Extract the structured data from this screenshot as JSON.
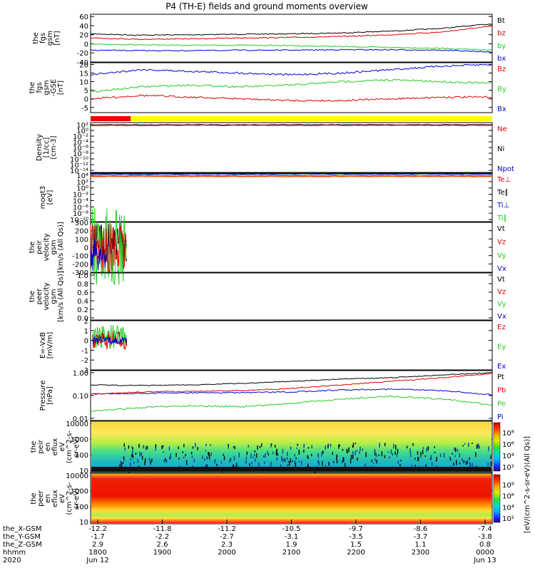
{
  "title": "P4 (TH-E) fields and ground moments overview",
  "colors": {
    "black": "#000000",
    "red": "#dd0000",
    "green": "#22cc22",
    "blue": "#0000cc",
    "yellow": "#ffff00",
    "barred": "#ee0000"
  },
  "chart_data": [
    {
      "type": "line",
      "ylabel": [
        "the",
        "fgs",
        "gsm",
        "[nT]"
      ],
      "yticks": [
        60,
        40,
        20,
        0,
        -20,
        -40
      ],
      "ylim": [
        -40,
        65
      ],
      "series": [
        {
          "name": "Bt",
          "color": "black",
          "y": [
            22,
            19,
            20,
            21,
            22,
            24,
            28,
            34,
            44
          ]
        },
        {
          "name": "bz",
          "color": "red",
          "y": [
            13,
            10,
            11,
            13,
            14,
            16,
            20,
            26,
            39
          ]
        },
        {
          "name": "by",
          "color": "green",
          "y": [
            -1,
            -2,
            -3,
            -3,
            -4,
            -6,
            -8,
            -10,
            -14
          ]
        },
        {
          "name": "bx",
          "color": "blue",
          "y": [
            -14,
            -15,
            -15,
            -14,
            -14,
            -13,
            -13,
            -14,
            -18
          ]
        }
      ]
    },
    {
      "type": "line",
      "ylabel": [
        "the",
        "fgs",
        "gsm",
        "-GSE",
        "[nT]"
      ],
      "yticks": [
        20,
        15,
        10,
        5,
        0,
        -5
      ],
      "ylim": [
        -8,
        21
      ],
      "series": [
        {
          "name": "Bz",
          "color": "red",
          "y": [
            0,
            2,
            1,
            0,
            -1,
            -1,
            0,
            1,
            1
          ]
        },
        {
          "name": "By",
          "color": "green",
          "y": [
            4,
            7,
            8,
            7,
            8,
            10,
            11,
            10,
            9
          ]
        },
        {
          "name": "Bx",
          "color": "blue",
          "y": [
            14,
            17,
            16,
            15,
            14,
            15,
            17,
            19,
            20
          ]
        }
      ]
    },
    {
      "type": "bar",
      "name": "mode-bar",
      "segments": [
        {
          "from": 0,
          "to": 0.1,
          "color": "barred"
        },
        {
          "from": 0.1,
          "to": 1,
          "color": "yellow"
        }
      ]
    },
    {
      "type": "line",
      "ylabel": [
        "Density",
        "[1/cc]",
        "[cm-3]"
      ],
      "yticks": [
        "10²",
        "10⁰",
        "10⁻²",
        "10⁻⁴",
        "10⁻⁶",
        "10⁻⁸",
        "10⁻¹⁰",
        "10⁻¹²",
        "10⁻¹⁴"
      ],
      "series": [
        {
          "name": "Ne",
          "color": "red"
        },
        {
          "name": "Ni",
          "color": "black"
        },
        {
          "name": "Npot",
          "color": "blue"
        }
      ]
    },
    {
      "type": "line",
      "ylabel": [
        "moqt3",
        "[eV]"
      ],
      "yticks": [
        "10⁴",
        "10²",
        "10⁰",
        "10⁻²",
        "10⁻⁴",
        "10⁻⁶",
        "10⁻⁸",
        "10⁻¹⁰"
      ],
      "series": [
        {
          "name": "Te⊥",
          "color": "red"
        },
        {
          "name": "Te∥",
          "color": "black"
        },
        {
          "name": "Ti⊥",
          "color": "blue"
        },
        {
          "name": "Ti∥",
          "color": "green"
        }
      ]
    },
    {
      "type": "line",
      "ylabel": [
        "the",
        "peir",
        "velocity",
        "gsm",
        "[km/s (All Qs)]"
      ],
      "yticks": [
        300,
        200,
        100,
        0,
        -100,
        -200,
        -300
      ],
      "ylim": [
        -300,
        300
      ],
      "series": [
        {
          "name": "Vt",
          "color": "black"
        },
        {
          "name": "Vz",
          "color": "red"
        },
        {
          "name": "Vy",
          "color": "green"
        },
        {
          "name": "Vx",
          "color": "blue"
        }
      ]
    },
    {
      "type": "line",
      "ylabel": [
        "the",
        "peer",
        "velocity",
        "gsm",
        "[km/s (All Qs)]"
      ],
      "yticks": [
        "1.0",
        "0.8",
        "0.6",
        "0.4",
        "0.2",
        "0.0"
      ],
      "ylim": [
        0,
        1
      ],
      "series": [
        {
          "name": "Vt",
          "color": "black"
        },
        {
          "name": "Vz",
          "color": "red"
        },
        {
          "name": "Vy",
          "color": "green"
        },
        {
          "name": "Vx",
          "color": "blue"
        }
      ]
    },
    {
      "type": "line",
      "ylabel": [
        "E=-VxB",
        "[mV/m]"
      ],
      "yticks": [
        2,
        1,
        0,
        -1,
        -2,
        -3
      ],
      "ylim": [
        -3,
        2
      ],
      "series": [
        {
          "name": "Ez",
          "color": "red"
        },
        {
          "name": "Ey",
          "color": "green"
        },
        {
          "name": "Ex",
          "color": "blue"
        }
      ]
    },
    {
      "type": "line",
      "ylabel": [
        "Pressure",
        "[nPa]"
      ],
      "yticks": [
        "1.00",
        "0.10",
        "0.01"
      ],
      "series": [
        {
          "name": "Pt",
          "color": "black"
        },
        {
          "name": "Pb",
          "color": "red"
        },
        {
          "name": "Pe",
          "color": "green"
        },
        {
          "name": "Pi",
          "color": "blue"
        }
      ]
    },
    {
      "type": "heatmap",
      "ylabel": [
        "the",
        "peir",
        "en",
        "eflux",
        "eV",
        "(cm^2-s-",
        "sr-eV)"
      ],
      "yticks": [
        10000,
        1000,
        100,
        10
      ],
      "colorbar_ticks": [
        "10⁸",
        "10⁶",
        "10⁴",
        "10²"
      ],
      "colorbar_label": "[eV/(cm^2-s-sr-eV)(All Qs)]"
    },
    {
      "type": "heatmap",
      "ylabel": [
        "the",
        "peer",
        "en",
        "eflux",
        "eV",
        "(cm^2-s-",
        "sr-eV)"
      ],
      "yticks": [
        10000,
        1000,
        100,
        10
      ],
      "colorbar_ticks": [
        "10⁸",
        "10⁶",
        "10⁴",
        "10²"
      ],
      "colorbar_label": "[eV/(cm^2-s-sr-eV)]"
    }
  ],
  "xaxis": {
    "row_labels": [
      "the_X-GSM",
      "the_Y-GSM",
      "the_Z-GSM",
      "hhmm",
      "2020"
    ],
    "ticks": [
      {
        "x": "-12.2",
        "y": "-1.7",
        "z": "2.9",
        "t": "1800",
        "d": "Jun 12"
      },
      {
        "x": "-11.8",
        "y": "-2.2",
        "z": "2.6",
        "t": "1900",
        "d": ""
      },
      {
        "x": "-11.2",
        "y": "-2.7",
        "z": "2.3",
        "t": "2000",
        "d": ""
      },
      {
        "x": "-10.5",
        "y": "-3.1",
        "z": "1.9",
        "t": "2100",
        "d": ""
      },
      {
        "x": "-9.7",
        "y": "-3.5",
        "z": "1.5",
        "t": "2200",
        "d": ""
      },
      {
        "x": "-8.6",
        "y": "-3.7",
        "z": "1.1",
        "t": "2300",
        "d": ""
      },
      {
        "x": "-7.4",
        "y": "-3.8",
        "z": "0.8",
        "t": "0000",
        "d": "Jun 13"
      }
    ]
  }
}
